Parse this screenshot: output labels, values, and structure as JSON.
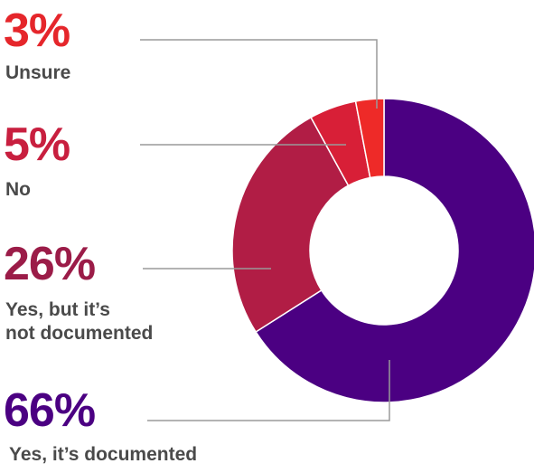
{
  "chart_data": {
    "type": "pie",
    "style": "donut",
    "slices": [
      {
        "label": "Yes, it’s documented",
        "value": 66,
        "display": "66%",
        "color": "#4b0082"
      },
      {
        "label": "Yes, but it’s not documented",
        "value": 26,
        "display": "26%",
        "color": "#b11d45"
      },
      {
        "label": "No",
        "value": 5,
        "display": "5%",
        "color": "#d81f37"
      },
      {
        "label": "Unsure",
        "value": 3,
        "display": "3%",
        "color": "#ee2a28"
      }
    ],
    "leader_line_color": "#9a9a9a"
  },
  "labels": {
    "unsure": {
      "pct": "3%",
      "text": "Unsure",
      "color": "#e5262b"
    },
    "no": {
      "pct": "5%",
      "text": "No",
      "color": "#c81f3f"
    },
    "yes_undocumented": {
      "pct": "26%",
      "line1": "Yes, but it’s",
      "line2": "not documented",
      "color": "#9b1c48"
    },
    "yes_documented": {
      "pct": "66%",
      "text": "Yes, it’s documented",
      "color": "#4b0082"
    }
  }
}
